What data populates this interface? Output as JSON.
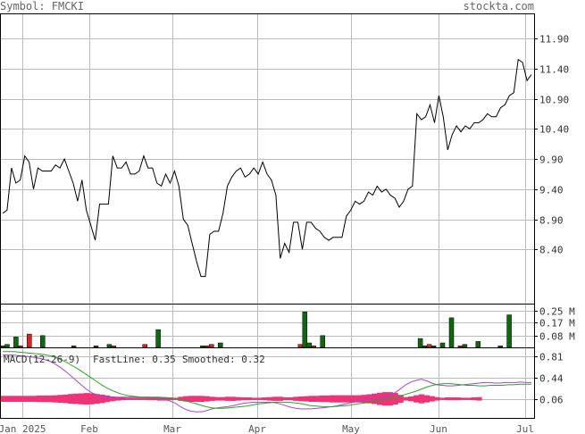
{
  "header": {
    "symbol_label": "Symbol: FMCKI",
    "site": "stockta.com"
  },
  "chart_data": [
    {
      "type": "line",
      "panel": "price",
      "x_labels": [
        "Jan 2025",
        "Feb",
        "Mar",
        "Apr",
        "May",
        "Jun",
        "Jul"
      ],
      "y_ticks": [
        "11.90",
        "11.40",
        "10.90",
        "10.40",
        "9.90",
        "9.40",
        "8.90",
        "8.40"
      ],
      "ylim": [
        7.5,
        12.3
      ],
      "grid": true,
      "series": [
        {
          "values": [
            9.0,
            9.05,
            9.75,
            9.5,
            9.55,
            9.95,
            9.85,
            9.4,
            9.75,
            9.7,
            9.7,
            9.7,
            9.8,
            9.75,
            9.9,
            9.7,
            9.5,
            9.2,
            9.55,
            9.05,
            8.8,
            8.55,
            9.15,
            9.15,
            9.15,
            9.95,
            9.75,
            9.75,
            9.85,
            9.65,
            9.65,
            9.7,
            9.95,
            9.75,
            9.75,
            9.5,
            9.45,
            9.65,
            9.5,
            9.7,
            9.45,
            8.9,
            8.8,
            8.5,
            8.2,
            7.95,
            7.95,
            8.65,
            8.7,
            8.7,
            9.0,
            9.45,
            9.6,
            9.7,
            9.75,
            9.6,
            9.65,
            9.75,
            9.65,
            9.85,
            9.65,
            9.55,
            9.3,
            8.25,
            8.5,
            8.35,
            8.85,
            8.85,
            8.4,
            8.85,
            8.85,
            8.75,
            8.7,
            8.6,
            8.55,
            8.6,
            8.6,
            8.6,
            8.95,
            9.05,
            9.2,
            9.15,
            9.2,
            9.35,
            9.3,
            9.45,
            9.35,
            9.4,
            9.3,
            9.25,
            9.1,
            9.2,
            9.4,
            9.45,
            10.65,
            10.55,
            10.6,
            10.8,
            10.5,
            10.95,
            10.6,
            10.05,
            10.3,
            10.45,
            10.35,
            10.45,
            10.4,
            10.5,
            10.5,
            10.55,
            10.65,
            10.6,
            10.6,
            10.75,
            10.8,
            10.95,
            11.0,
            11.55,
            11.5,
            11.2,
            11.3
          ]
        }
      ]
    },
    {
      "type": "bar",
      "panel": "volume",
      "y_ticks": [
        "0.25 M",
        "0.17 M",
        "0.08 M"
      ],
      "ylim": [
        0,
        0.29
      ],
      "values": [
        0.01,
        0.02,
        0.0,
        0.07,
        0.01,
        0.0,
        0.09,
        0.0,
        0.0,
        0.08,
        0.0,
        0.0,
        0.0,
        0.0,
        0.0,
        0.0,
        0.01,
        0.0,
        0.0,
        0.0,
        0.0,
        0.01,
        0.0,
        0.0,
        0.02,
        0.01,
        0.0,
        0.0,
        0.0,
        0.0,
        0.0,
        0.0,
        0.02,
        0.0,
        0.0,
        0.12,
        0.0,
        0.0,
        0.0,
        0.0,
        0.0,
        0.0,
        0.0,
        0.0,
        0.0,
        0.01,
        0.01,
        0.02,
        0.0,
        0.03,
        0.0,
        0.0,
        0.0,
        0.0,
        0.0,
        0.0,
        0.0,
        0.0,
        0.0,
        0.0,
        0.0,
        0.0,
        0.0,
        0.0,
        0.0,
        0.0,
        0.0,
        0.02,
        0.24,
        0.03,
        0.01,
        0.0,
        0.08,
        0.0,
        0.0,
        0.0,
        0.0,
        0.0,
        0.0,
        0.0,
        0.0,
        0.0,
        0.0,
        0.0,
        0.0,
        0.0,
        0.0,
        0.0,
        0.0,
        0.0,
        0.0,
        0.0,
        0.0,
        0.0,
        0.06,
        0.01,
        0.02,
        0.01,
        0.0,
        0.03,
        0.0,
        0.2,
        0.0,
        0.01,
        0.02,
        0.0,
        0.0,
        0.04,
        0.0,
        0.0,
        0.0,
        0.0,
        0.01,
        0.0,
        0.22,
        0.0,
        0.0,
        0.0,
        0.0,
        0.0
      ],
      "up_down": [
        "u",
        "u",
        "u",
        "u",
        "d",
        "u",
        "d",
        "u",
        "u",
        "u",
        "u",
        "u",
        "u",
        "u",
        "u",
        "u",
        "u",
        "u",
        "u",
        "d",
        "u",
        "u",
        "u",
        "u",
        "u",
        "d",
        "u",
        "u",
        "u",
        "u",
        "u",
        "d",
        "d",
        "u",
        "u",
        "u",
        "u",
        "u",
        "u",
        "u",
        "u",
        "u",
        "u",
        "d",
        "u",
        "u",
        "d",
        "d",
        "u",
        "u",
        "u",
        "u",
        "u",
        "u",
        "u",
        "u",
        "u",
        "u",
        "u",
        "u",
        "u",
        "u",
        "u",
        "u",
        "u",
        "d",
        "u",
        "d",
        "u",
        "u",
        "d",
        "u",
        "u",
        "u",
        "u",
        "u",
        "u",
        "u",
        "u",
        "u",
        "u",
        "u",
        "u",
        "u",
        "u",
        "u",
        "u",
        "u",
        "u",
        "u",
        "u",
        "u",
        "u",
        "u",
        "u",
        "u",
        "d",
        "u",
        "u",
        "u",
        "u",
        "u",
        "u",
        "d",
        "u",
        "d",
        "u",
        "u",
        "u",
        "u",
        "u",
        "u",
        "u",
        "u",
        "u",
        "u",
        "u",
        "u",
        "u",
        "u"
      ]
    },
    {
      "type": "line",
      "panel": "macd",
      "title": "MACD(12-26-9)",
      "fast_label": "FastLine: 0.35",
      "smooth_label": "Smoothed: 0.32",
      "y_ticks": [
        "0.81",
        "0.44",
        "0.06"
      ],
      "ylim": [
        -0.28,
        0.96
      ],
      "colors": {
        "fast": "#aa44cc",
        "smoothed": "#22aa22",
        "histogram": "#ee3377"
      },
      "series": [
        {
          "name": "FastLine",
          "values": [
            0.84,
            0.84,
            0.84,
            0.83,
            0.82,
            0.81,
            0.8,
            0.78,
            0.76,
            0.73,
            0.68,
            0.62,
            0.55,
            0.47,
            0.39,
            0.31,
            0.23,
            0.17,
            0.13,
            0.1,
            0.09,
            0.09,
            0.09,
            0.09,
            0.09,
            0.09,
            0.09,
            0.09,
            0.09,
            0.08,
            0.07,
            0.05,
            0.02,
            -0.02,
            -0.08,
            -0.13,
            -0.16,
            -0.17,
            -0.17,
            -0.15,
            -0.12,
            -0.1,
            -0.09,
            -0.08,
            -0.06,
            -0.04,
            -0.02,
            -0.01,
            0.0,
            0.0,
            0.0,
            0.0,
            -0.01,
            -0.03,
            -0.06,
            -0.09,
            -0.11,
            -0.12,
            -0.12,
            -0.12,
            -0.11,
            -0.1,
            -0.09,
            -0.08,
            -0.06,
            -0.04,
            -0.02,
            0.0,
            0.02,
            0.04,
            0.05,
            0.06,
            0.07,
            0.09,
            0.12,
            0.17,
            0.24,
            0.31,
            0.36,
            0.39,
            0.41,
            0.38,
            0.34,
            0.31,
            0.3,
            0.29,
            0.29,
            0.3,
            0.31,
            0.32,
            0.33,
            0.34,
            0.35,
            0.35,
            0.34,
            0.34,
            0.35,
            0.35,
            0.35,
            0.36,
            0.35,
            0.35
          ]
        },
        {
          "name": "Smoothed",
          "values": [
            0.9,
            0.9,
            0.9,
            0.89,
            0.88,
            0.87,
            0.86,
            0.85,
            0.83,
            0.8,
            0.76,
            0.71,
            0.65,
            0.59,
            0.52,
            0.45,
            0.38,
            0.31,
            0.25,
            0.2,
            0.16,
            0.13,
            0.11,
            0.1,
            0.09,
            0.09,
            0.09,
            0.09,
            0.08,
            0.07,
            0.05,
            0.03,
            0.01,
            -0.02,
            -0.05,
            -0.08,
            -0.1,
            -0.11,
            -0.11,
            -0.1,
            -0.09,
            -0.08,
            -0.07,
            -0.05,
            -0.03,
            -0.02,
            -0.01,
            0.0,
            0.0,
            0.0,
            -0.01,
            -0.02,
            -0.04,
            -0.06,
            -0.07,
            -0.08,
            -0.08,
            -0.08,
            -0.07,
            -0.06,
            -0.05,
            -0.03,
            -0.02,
            0.0,
            0.02,
            0.04,
            0.06,
            0.08,
            0.1,
            0.13,
            0.16,
            0.19,
            0.23,
            0.27,
            0.3,
            0.32,
            0.33,
            0.33,
            0.32,
            0.31,
            0.3,
            0.3,
            0.29,
            0.29,
            0.3,
            0.3,
            0.3,
            0.31,
            0.31,
            0.32,
            0.32,
            0.32
          ]
        }
      ]
    }
  ]
}
